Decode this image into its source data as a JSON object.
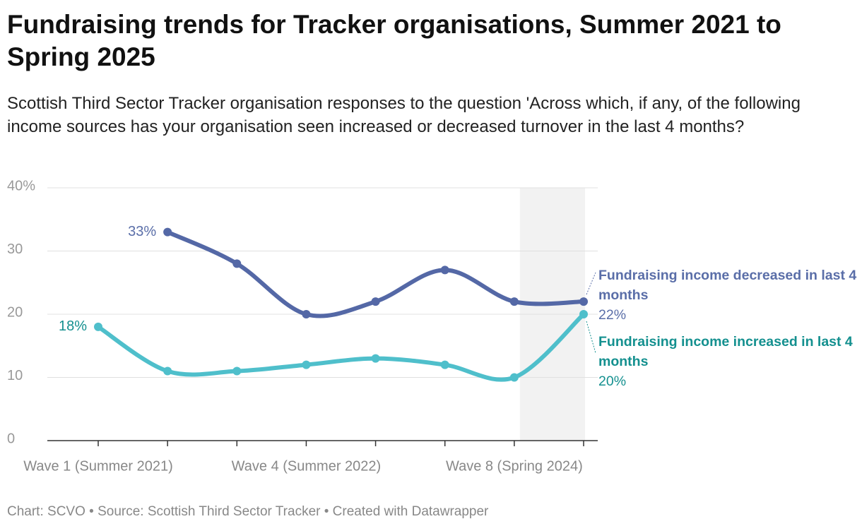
{
  "chart_data": {
    "type": "line",
    "title": "Fundraising trends for Tracker organisations, Summer 2021 to Spring 2025",
    "subtitle": "Scottish Third Sector Tracker organisation responses to the question 'Across which, if any, of the following income sources has your organisation seen increased or decreased turnover in the last 4 months?",
    "footer": "Chart: SCVO • Source: Scottish Third Sector Tracker • Created with Datawrapper",
    "categories": [
      "Wave 1 (Summer 2021)",
      null,
      null,
      "Wave 4 (Summer 2022)",
      null,
      null,
      "Wave 8 (Spring 2024)",
      null
    ],
    "series": [
      {
        "name": "Fundraising income decreased in last 4 months",
        "color": "#5468a6",
        "label_color": "#5a6ea8",
        "values": [
          null,
          33,
          28,
          20,
          22,
          27,
          22,
          22
        ],
        "value_labels": [
          null,
          "33%",
          null,
          null,
          null,
          null,
          null,
          "22%"
        ]
      },
      {
        "name": "Fundraising income increased in last 4 months",
        "color": "#4fbfcb",
        "label_color": "#14908f",
        "values": [
          18,
          11,
          11,
          12,
          13,
          12,
          10,
          20
        ],
        "value_labels": [
          "18%",
          null,
          null,
          null,
          null,
          null,
          null,
          "20%"
        ]
      }
    ],
    "ylim": [
      0,
      40
    ],
    "yticks": [
      0,
      10,
      20,
      30,
      {
        "value": 40,
        "label": "40%"
      }
    ],
    "grid": true
  }
}
